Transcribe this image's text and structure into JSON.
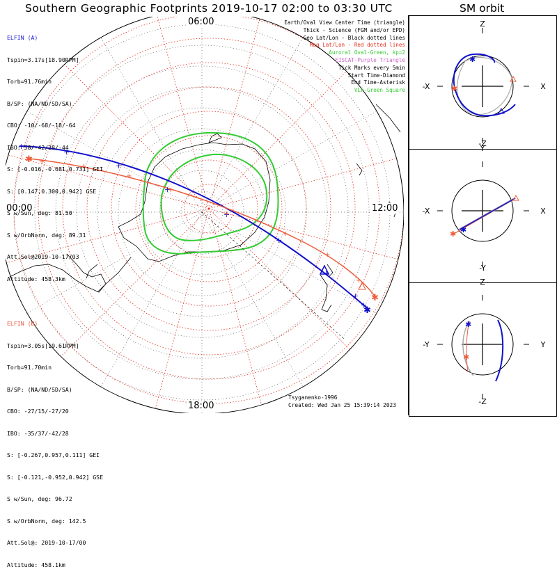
{
  "title": "Southern Geographic Footprints 2019-10-17 02:00 to 03:30 UTC",
  "sm_title": "SM orbit",
  "time_labels": {
    "top": "06:00",
    "left": "00:00",
    "right": "12:00",
    "bottom": "18:00"
  },
  "elfin_a": {
    "header": "ELFIN (A)",
    "lines": [
      "Tspin=3.17s[18.90RPM]",
      "Torb=91.76min",
      "B/SP: (NA/ND/SD/SA)",
      "CBO: -10/-68/-18/-64",
      "IBO: 58/-42/28/-44",
      "S: [-0.016,-0.681,0.731] GEI",
      "S: [0.147,0.300,0.942] GSE",
      "S w/Sun, deg: 81.50",
      "S w/OrbNorm, deg: 89.31",
      "Att.Sol@2019-10-17/03",
      "Altitude: 458.3km"
    ]
  },
  "elfin_b": {
    "header": "ELFIN (B)",
    "lines": [
      "Tspin=3.05s[19.61RPM]",
      "Torb=91.70min",
      "B/SP: (NA/ND/SD/SA)",
      "CBO: -27/15/-27/20",
      "IBO: -35/37/-42/28",
      "S: [-0.267,0.957,0.111] GEI",
      "S: [-0.121,-0.952,0.942] GSE",
      "S w/Sun, deg: 96.72",
      "S w/OrbNorm, deg: 142.5",
      "Att.Sol@: 2019-10-17/00",
      "Altitude: 458.1km"
    ]
  },
  "legend": [
    {
      "text": "Earth/Oval View Center Time (triangle)",
      "color": "#000000"
    },
    {
      "text": "Thick - Science (FGM and/or EPD)",
      "color": "#000000"
    },
    {
      "text": "Geo Lat/Lon - Black dotted lines",
      "color": "#000000"
    },
    {
      "text": "Mag Lat/Lon - Red dotted lines",
      "color": "#e0301e"
    },
    {
      "text": "Auroral Oval-Green, kp=2",
      "color": "#33cc33"
    },
    {
      "text": "EISCAT-Purple Triangle",
      "color": "#cc66cc"
    },
    {
      "text": "Tick Marks every 5min",
      "color": "#000000"
    },
    {
      "text": "Start Time-Diamond",
      "color": "#000000"
    },
    {
      "text": "End Time-Asterisk",
      "color": "#000000"
    },
    {
      "text": "VLF-Green Square",
      "color": "#33cc33"
    }
  ],
  "credits": {
    "model": "Tsyganenko-1996",
    "created": "Created: Wed Jan 25 15:39:14 2023"
  },
  "colors": {
    "elfin_a": "#1010cc",
    "elfin_b": "#ee5a3a",
    "oval": "#33cc33",
    "mag_grid": "#e0301e",
    "geo_grid": "#555555"
  },
  "sm_panels": [
    {
      "top": "Z",
      "bottom": "-Z",
      "left": "-X",
      "right": "X"
    },
    {
      "top": "Y",
      "bottom": "-Y",
      "left": "-X",
      "right": "X"
    },
    {
      "top": "Z",
      "bottom": "-Z",
      "left": "-Y",
      "right": "Y"
    }
  ],
  "chart_data": {
    "type": "scatter",
    "projection": "south polar, geographic",
    "title": "Southern Geographic Footprints 2019-10-17 02:00 to 03:30 UTC",
    "local_time_labels": [
      "00:00",
      "06:00",
      "12:00",
      "18:00"
    ],
    "series": [
      {
        "name": "ELFIN (A)",
        "color": "#1010cc"
      },
      {
        "name": "ELFIN (B)",
        "color": "#ee5a3a"
      }
    ],
    "auroral_oval_kp": 2,
    "tick_interval_min": 5
  }
}
